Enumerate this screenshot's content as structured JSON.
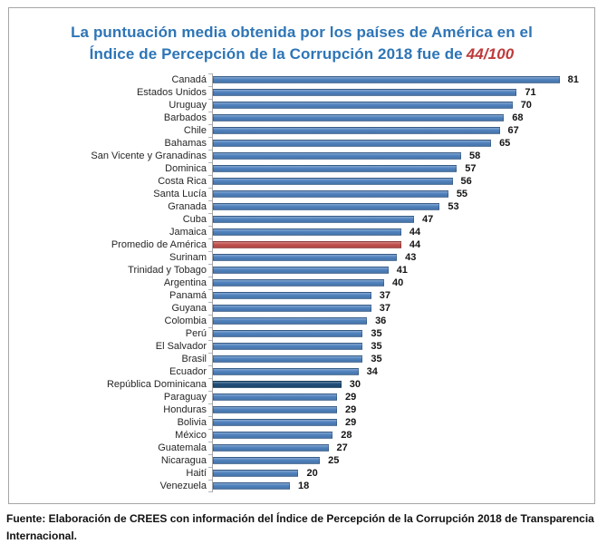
{
  "title": {
    "line1": "La puntuación media obtenida por los países de América en el",
    "line2_prefix": "Índice de Percepción de la Corrupción 2018 fue de",
    "highlight": "44/100"
  },
  "footer": {
    "source": "Fuente: Elaboración de CREES con información del Índice de Percepción de la Corrupción 2018 de Transparencia Internacional."
  },
  "colors": {
    "default": "#4F81BD",
    "average": "#C0504D",
    "emphasis": "#1F4E79",
    "title_blue": "#2E75B6",
    "title_highlight_red": "#BE3B3B",
    "frame_border": "#A6A6A6",
    "axis_line": "#A6A6A6",
    "label_text": "#262626",
    "value_text": "#141414"
  },
  "chart_data": {
    "type": "bar",
    "orientation": "horizontal",
    "title": "La puntuación media obtenida por los países de América en el Índice de Percepción de la Corrupción 2018 fue de 44/100",
    "xlabel": "",
    "ylabel": "",
    "xlim": [
      0,
      87
    ],
    "grid": false,
    "legend": false,
    "rows": [
      {
        "label": "Canadá",
        "value": 81,
        "color_role": "default"
      },
      {
        "label": "Estados Unidos",
        "value": 71,
        "color_role": "default"
      },
      {
        "label": "Uruguay",
        "value": 70,
        "color_role": "default"
      },
      {
        "label": "Barbados",
        "value": 68,
        "color_role": "default"
      },
      {
        "label": "Chile",
        "value": 67,
        "color_role": "default"
      },
      {
        "label": "Bahamas",
        "value": 65,
        "color_role": "default"
      },
      {
        "label": "San Vicente y Granadinas",
        "value": 58,
        "color_role": "default"
      },
      {
        "label": "Dominica",
        "value": 57,
        "color_role": "default"
      },
      {
        "label": "Costa Rica",
        "value": 56,
        "color_role": "default"
      },
      {
        "label": "Santa Lucía",
        "value": 55,
        "color_role": "default"
      },
      {
        "label": "Granada",
        "value": 53,
        "color_role": "default"
      },
      {
        "label": "Cuba",
        "value": 47,
        "color_role": "default"
      },
      {
        "label": "Jamaica",
        "value": 44,
        "color_role": "default"
      },
      {
        "label": "Promedio de América",
        "value": 44,
        "color_role": "average"
      },
      {
        "label": "Surinam",
        "value": 43,
        "color_role": "default"
      },
      {
        "label": "Trinidad y Tobago",
        "value": 41,
        "color_role": "default"
      },
      {
        "label": "Argentina",
        "value": 40,
        "color_role": "default"
      },
      {
        "label": "Panamá",
        "value": 37,
        "color_role": "default"
      },
      {
        "label": "Guyana",
        "value": 37,
        "color_role": "default"
      },
      {
        "label": "Colombia",
        "value": 36,
        "color_role": "default"
      },
      {
        "label": "Perú",
        "value": 35,
        "color_role": "default"
      },
      {
        "label": "El Salvador",
        "value": 35,
        "color_role": "default"
      },
      {
        "label": "Brasil",
        "value": 35,
        "color_role": "default"
      },
      {
        "label": "Ecuador",
        "value": 34,
        "color_role": "default"
      },
      {
        "label": "República Dominicana",
        "value": 30,
        "color_role": "emphasis"
      },
      {
        "label": "Paraguay",
        "value": 29,
        "color_role": "default"
      },
      {
        "label": "Honduras",
        "value": 29,
        "color_role": "default"
      },
      {
        "label": "Bolivia",
        "value": 29,
        "color_role": "default"
      },
      {
        "label": "México",
        "value": 28,
        "color_role": "default"
      },
      {
        "label": "Guatemala",
        "value": 27,
        "color_role": "default"
      },
      {
        "label": "Nicaragua",
        "value": 25,
        "color_role": "default"
      },
      {
        "label": "Haití",
        "value": 20,
        "color_role": "default"
      },
      {
        "label": "Venezuela",
        "value": 18,
        "color_role": "default"
      }
    ]
  }
}
